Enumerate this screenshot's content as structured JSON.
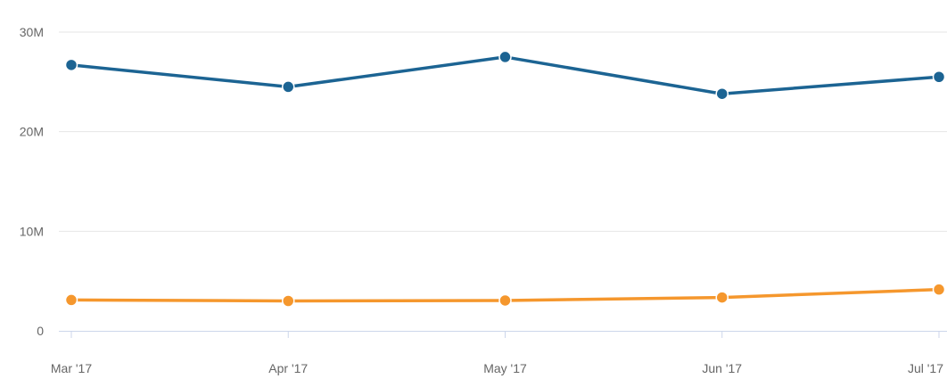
{
  "chart_data": {
    "type": "line",
    "categories": [
      "Mar '17",
      "Apr '17",
      "May '17",
      "Jun '17",
      "Jul '17"
    ],
    "y_tick_labels": [
      "0",
      "10M",
      "20M",
      "30M"
    ],
    "y_ticks": [
      0,
      10000000,
      20000000,
      30000000
    ],
    "ylim": [
      0,
      30000000
    ],
    "grid": true,
    "series": [
      {
        "color": "#1c6493",
        "values": [
          26700000,
          24500000,
          27500000,
          23800000,
          25500000
        ]
      },
      {
        "color": "#f5972d",
        "values": [
          3100000,
          3000000,
          3050000,
          3350000,
          4150000
        ]
      }
    ]
  }
}
